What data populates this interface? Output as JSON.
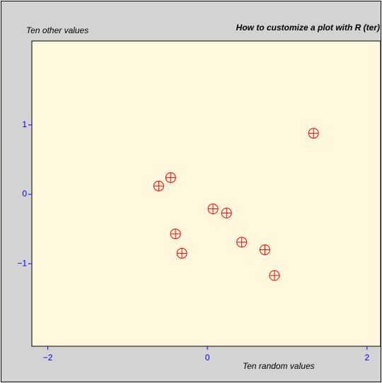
{
  "chart_data": {
    "type": "scatter",
    "title": "How to customize a plot with R (ter)",
    "x_label": "Ten random values",
    "y_label": "Ten other values",
    "series": [
      {
        "color": "#ff0000",
        "x": [
          1.33,
          -0.46,
          -0.61,
          0.07,
          0.24,
          -0.4,
          0.43,
          0.72,
          -0.32,
          0.84
        ],
        "values": [
          0.88,
          0.24,
          0.12,
          -0.21,
          -0.27,
          -0.57,
          -0.69,
          -0.8,
          -0.85,
          -1.17
        ]
      }
    ],
    "xlim": [
      -2.2,
      2.17
    ],
    "ylim": [
      -2.19,
      2.21
    ],
    "xticks": [
      {
        "value": -2,
        "label": "−2"
      },
      0,
      2
    ],
    "yticks": [
      {
        "value": -1,
        "label": "−1"
      },
      0,
      1
    ],
    "background": "#d3d3d3",
    "plot_background": "#fff8dc",
    "tick_color": "#0000ff"
  }
}
